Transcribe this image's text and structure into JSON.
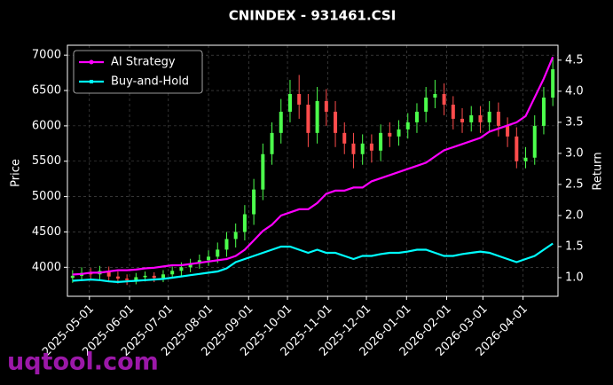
{
  "chart_data": {
    "type": "candlestick",
    "title": "CNINDEX - 931461.CSI",
    "watermark": "uqtool.com",
    "ylabel": "Price",
    "y2label": "Return",
    "x": [
      "2025-04-18",
      "2025-04-25",
      "2025-05-02",
      "2025-05-09",
      "2025-05-16",
      "2025-05-23",
      "2025-05-30",
      "2025-06-06",
      "2025-06-13",
      "2025-06-20",
      "2025-06-27",
      "2025-07-04",
      "2025-07-11",
      "2025-07-18",
      "2025-07-25",
      "2025-08-01",
      "2025-08-08",
      "2025-08-15",
      "2025-08-22",
      "2025-08-29",
      "2025-09-05",
      "2025-09-12",
      "2025-09-19",
      "2025-09-26",
      "2025-10-03",
      "2025-10-10",
      "2025-10-17",
      "2025-10-24",
      "2025-10-31",
      "2025-11-07",
      "2025-11-14",
      "2025-11-21",
      "2025-11-28",
      "2025-12-05",
      "2025-12-12",
      "2025-12-19",
      "2025-12-26",
      "2026-01-02",
      "2026-01-09",
      "2026-01-16",
      "2026-01-23",
      "2026-01-30",
      "2026-02-06",
      "2026-02-13",
      "2026-02-20",
      "2026-02-27",
      "2026-03-06",
      "2026-03-13",
      "2026-03-20",
      "2026-03-27",
      "2026-04-03",
      "2026-04-10",
      "2026-04-17",
      "2026-04-24"
    ],
    "ohlc": {
      "up_color": "#4cff4c",
      "down_color": "#ff4c4c",
      "open": [
        3850,
        3880,
        3920,
        3900,
        3950,
        3870,
        3840,
        3820,
        3860,
        3880,
        3850,
        3900,
        3950,
        4000,
        4050,
        4100,
        4150,
        4250,
        4400,
        4500,
        4750,
        5100,
        5600,
        5900,
        6200,
        6450,
        6300,
        5900,
        6350,
        6200,
        5900,
        5750,
        5600,
        5750,
        5650,
        5900,
        5850,
        5950,
        6050,
        6200,
        6400,
        6450,
        6300,
        6100,
        6050,
        6150,
        6050,
        6200,
        6000,
        5850,
        5500,
        5550,
        6000,
        6400
      ],
      "high": [
        3960,
        4000,
        3990,
        4020,
        4010,
        3940,
        3900,
        3920,
        3940,
        3930,
        3960,
        4010,
        4070,
        4120,
        4180,
        4240,
        4350,
        4500,
        4620,
        4880,
        5250,
        5750,
        6050,
        6380,
        6650,
        6720,
        6450,
        6550,
        6520,
        6350,
        6050,
        5900,
        5880,
        5880,
        6020,
        6050,
        6080,
        6180,
        6320,
        6550,
        6650,
        6600,
        6420,
        6250,
        6280,
        6280,
        6350,
        6330,
        6120,
        5980,
        5700,
        6150,
        6550,
        6950
      ],
      "low": [
        3780,
        3810,
        3830,
        3830,
        3800,
        3770,
        3750,
        3760,
        3800,
        3790,
        3790,
        3840,
        3880,
        3930,
        3980,
        4020,
        4060,
        4150,
        4280,
        4380,
        4600,
        4950,
        5450,
        5750,
        6050,
        6100,
        5700,
        5750,
        6000,
        5700,
        5600,
        5400,
        5450,
        5480,
        5500,
        5700,
        5720,
        5820,
        5900,
        6050,
        6250,
        6150,
        5950,
        5900,
        5920,
        5900,
        5920,
        5850,
        5700,
        5400,
        5400,
        5450,
        5880,
        6280
      ],
      "close": [
        3880,
        3920,
        3900,
        3950,
        3870,
        3840,
        3820,
        3860,
        3880,
        3850,
        3900,
        3950,
        4000,
        4050,
        4100,
        4150,
        4250,
        4400,
        4500,
        4750,
        5100,
        5600,
        5900,
        6200,
        6450,
        6300,
        5900,
        6350,
        6200,
        5900,
        5750,
        5600,
        5750,
        5650,
        5900,
        5850,
        5950,
        6050,
        6200,
        6400,
        6450,
        6300,
        6100,
        6050,
        6150,
        6050,
        6200,
        6000,
        5850,
        5500,
        5550,
        6000,
        6400,
        6800
      ]
    },
    "series": [
      {
        "name": "AI Strategy",
        "color": "#ff00ff",
        "axis": "y2",
        "marker": true,
        "values": [
          1.05,
          1.06,
          1.08,
          1.08,
          1.1,
          1.12,
          1.12,
          1.13,
          1.15,
          1.16,
          1.18,
          1.2,
          1.2,
          1.22,
          1.24,
          1.26,
          1.28,
          1.3,
          1.35,
          1.45,
          1.6,
          1.75,
          1.85,
          2.0,
          2.05,
          2.1,
          2.1,
          2.2,
          2.35,
          2.4,
          2.4,
          2.45,
          2.45,
          2.55,
          2.6,
          2.65,
          2.7,
          2.75,
          2.8,
          2.85,
          2.95,
          3.05,
          3.1,
          3.15,
          3.2,
          3.25,
          3.35,
          3.4,
          3.45,
          3.5,
          3.6,
          3.9,
          4.2,
          4.55
        ]
      },
      {
        "name": "Buy-and-Hold",
        "color": "#00ffff",
        "axis": "y2",
        "marker": false,
        "values": [
          0.95,
          0.96,
          0.97,
          0.96,
          0.94,
          0.93,
          0.94,
          0.95,
          0.96,
          0.97,
          0.98,
          1.0,
          1.02,
          1.04,
          1.06,
          1.08,
          1.1,
          1.15,
          1.25,
          1.3,
          1.35,
          1.4,
          1.45,
          1.5,
          1.5,
          1.45,
          1.4,
          1.45,
          1.4,
          1.4,
          1.35,
          1.3,
          1.35,
          1.35,
          1.38,
          1.4,
          1.4,
          1.42,
          1.45,
          1.45,
          1.4,
          1.35,
          1.35,
          1.38,
          1.4,
          1.42,
          1.4,
          1.35,
          1.3,
          1.25,
          1.3,
          1.35,
          1.45,
          1.55
        ]
      }
    ],
    "xlim": [
      "2025-04-14",
      "2026-04-28"
    ],
    "xticks": [
      "2025-05-01",
      "2025-06-01",
      "2025-07-01",
      "2025-08-01",
      "2025-09-01",
      "2025-10-01",
      "2025-11-01",
      "2025-12-01",
      "2026-01-01",
      "2026-02-01",
      "2026-03-01",
      "2026-04-01"
    ],
    "ylim": [
      3590,
      7140
    ],
    "yticks": [
      4000,
      4500,
      5000,
      5500,
      6000,
      6500,
      7000
    ],
    "y2lim": [
      0.7,
      4.74
    ],
    "y2ticks": [
      {
        "value": 1,
        "label": "1.0"
      },
      1.5,
      {
        "value": 2,
        "label": "2.0"
      },
      2.5,
      {
        "value": 3,
        "label": "3.0"
      },
      3.5,
      {
        "value": 4,
        "label": "4.0"
      },
      4.5
    ],
    "grid": true,
    "legend": "upper left"
  }
}
